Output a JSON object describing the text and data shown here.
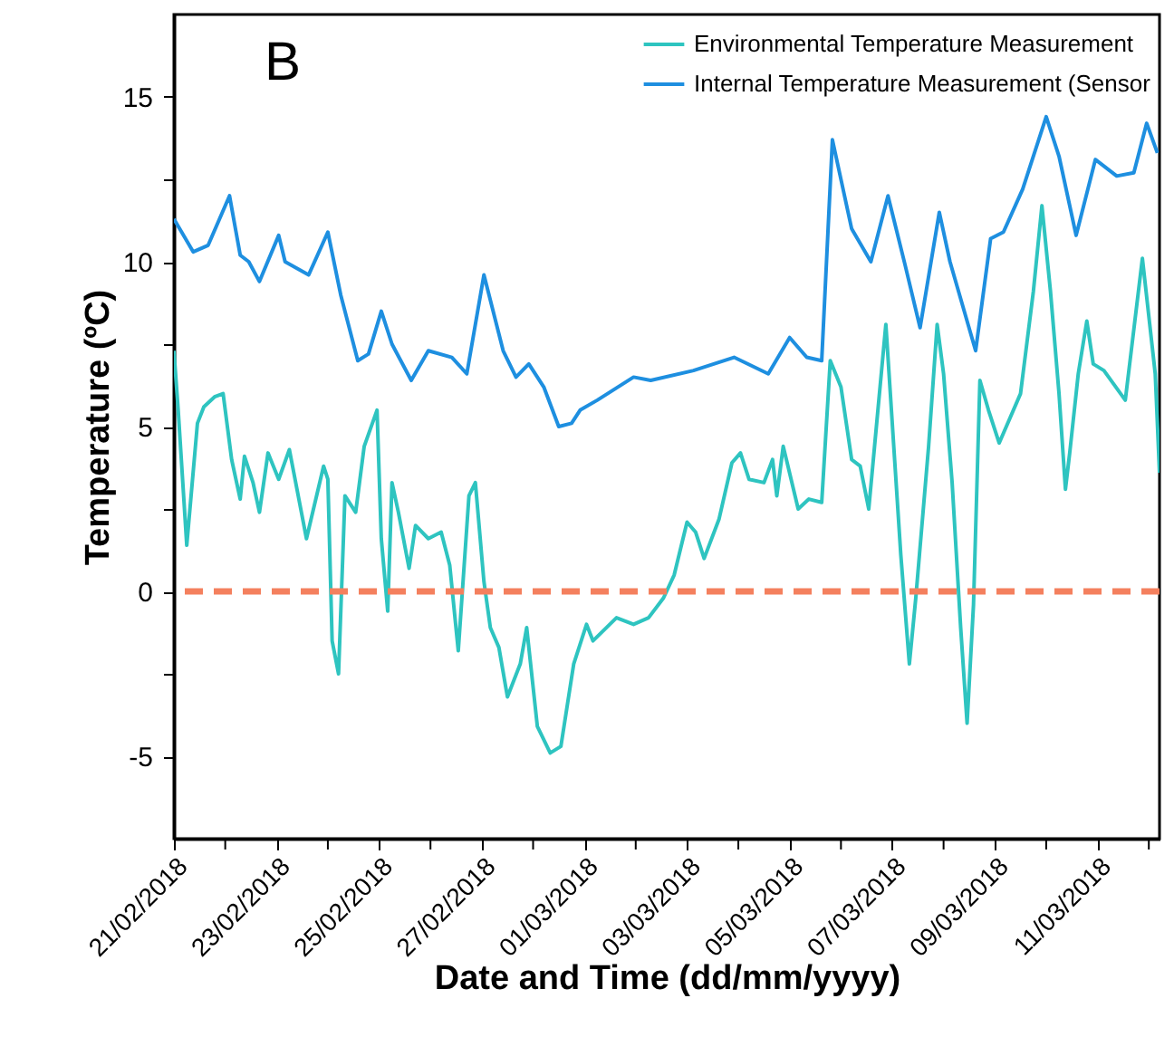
{
  "chart_data": {
    "type": "line",
    "xlabel": "Date and Time (dd/mm/yyyy)",
    "ylabel": "Temperature (ºC)",
    "annotations": [
      "B"
    ],
    "xlim": [
      "2018-02-21T00:00",
      "2018-03-12T05:00"
    ],
    "ylim": [
      -7.5,
      17.5
    ],
    "xticks": [
      {
        "value": "2018-02-21",
        "label": "21/02/2018"
      },
      {
        "value": "2018-02-22",
        "label": null
      },
      {
        "value": "2018-02-23",
        "label": "23/02/2018"
      },
      {
        "value": "2018-02-24",
        "label": null
      },
      {
        "value": "2018-02-25",
        "label": "25/02/2018"
      },
      {
        "value": "2018-02-26",
        "label": null
      },
      {
        "value": "2018-02-27",
        "label": "27/02/2018"
      },
      {
        "value": "2018-02-28",
        "label": null
      },
      {
        "value": "2018-03-01",
        "label": "01/03/2018"
      },
      {
        "value": "2018-03-02",
        "label": null
      },
      {
        "value": "2018-03-03",
        "label": "03/03/2018"
      },
      {
        "value": "2018-03-04",
        "label": null
      },
      {
        "value": "2018-03-05",
        "label": "05/03/2018"
      },
      {
        "value": "2018-03-06",
        "label": null
      },
      {
        "value": "2018-03-07",
        "label": "07/03/2018"
      },
      {
        "value": "2018-03-08",
        "label": null
      },
      {
        "value": "2018-03-09",
        "label": "09/03/2018"
      },
      {
        "value": "2018-03-10",
        "label": null
      },
      {
        "value": "2018-03-11",
        "label": "11/03/2018"
      },
      {
        "value": "2018-03-12",
        "label": null
      }
    ],
    "yticks": [
      -5,
      {
        "value": -2.5,
        "label": null
      },
      0,
      {
        "value": 2.5,
        "label": null
      },
      5,
      {
        "value": 7.5,
        "label": null
      },
      10,
      {
        "value": 12.5,
        "label": null
      },
      15
    ],
    "grid": false,
    "legend": "top right",
    "marker": "none",
    "ref_lines": [
      {
        "axis": "y",
        "value": 0,
        "color": "#f4805e",
        "line_style": "dashed"
      }
    ],
    "series": [
      {
        "name": "Environmental Temperature Measurement",
        "color": "#2ec4c0",
        "x": [
          "2018-02-21T00:00",
          "2018-02-21T02:00",
          "2018-02-21T06:00",
          "2018-02-21T11:00",
          "2018-02-21T14:00",
          "2018-02-21T19:00",
          "2018-02-21T23:00",
          "2018-02-22T03:00",
          "2018-02-22T07:00",
          "2018-02-22T09:00",
          "2018-02-22T13:00",
          "2018-02-22T16:00",
          "2018-02-22T20:00",
          "2018-02-23T01:00",
          "2018-02-23T06:00",
          "2018-02-23T14:00",
          "2018-02-23T22:00",
          "2018-02-24T00:00",
          "2018-02-24T02:00",
          "2018-02-24T05:00",
          "2018-02-24T08:00",
          "2018-02-24T13:00",
          "2018-02-24T17:00",
          "2018-02-24T23:00",
          "2018-02-25T01:00",
          "2018-02-25T04:00",
          "2018-02-25T06:00",
          "2018-02-25T09:00",
          "2018-02-25T14:00",
          "2018-02-25T17:00",
          "2018-02-25T23:00",
          "2018-02-26T05:00",
          "2018-02-26T09:00",
          "2018-02-26T13:00",
          "2018-02-26T18:00",
          "2018-02-26T21:00",
          "2018-02-27T01:00",
          "2018-02-27T04:00",
          "2018-02-27T08:00",
          "2018-02-27T12:00",
          "2018-02-27T18:00",
          "2018-02-27T21:00",
          "2018-02-28T02:00",
          "2018-02-28T08:00",
          "2018-02-28T13:00",
          "2018-02-28T19:00",
          "2018-03-01T01:00",
          "2018-03-01T04:00",
          "2018-03-01T15:00",
          "2018-03-01T23:00",
          "2018-03-02T06:00",
          "2018-03-02T13:00",
          "2018-03-02T18:00",
          "2018-03-03T00:00",
          "2018-03-03T04:00",
          "2018-03-03T08:00",
          "2018-03-03T15:00",
          "2018-03-03T21:00",
          "2018-03-04T01:00",
          "2018-03-04T05:00",
          "2018-03-04T12:00",
          "2018-03-04T16:00",
          "2018-03-04T18:00",
          "2018-03-04T21:00",
          "2018-03-05T04:00",
          "2018-03-05T09:00",
          "2018-03-05T15:00",
          "2018-03-05T19:00",
          "2018-03-06T00:00",
          "2018-03-06T05:00",
          "2018-03-06T09:00",
          "2018-03-06T13:00",
          "2018-03-06T21:00",
          "2018-03-07T02:00",
          "2018-03-07T04:00",
          "2018-03-07T08:00",
          "2018-03-07T11:00",
          "2018-03-07T17:00",
          "2018-03-07T21:00",
          "2018-03-08T00:00",
          "2018-03-08T04:00",
          "2018-03-08T08:00",
          "2018-03-08T11:00",
          "2018-03-08T14:00",
          "2018-03-08T17:00",
          "2018-03-08T21:00",
          "2018-03-09T02:00",
          "2018-03-09T12:00",
          "2018-03-09T18:00",
          "2018-03-09T22:00",
          "2018-03-10T02:00",
          "2018-03-10T06:00",
          "2018-03-10T09:00",
          "2018-03-10T11:00",
          "2018-03-10T15:00",
          "2018-03-10T19:00",
          "2018-03-10T22:00",
          "2018-03-11T03:00",
          "2018-03-11T13:00",
          "2018-03-11T21:00",
          "2018-03-12T03:00",
          "2018-03-12T05:00"
        ],
        "values": [
          7.3,
          5.5,
          1.4,
          5.1,
          5.6,
          5.9,
          6.0,
          4.0,
          2.8,
          4.1,
          3.3,
          2.4,
          4.2,
          3.4,
          4.3,
          1.6,
          3.8,
          3.4,
          -1.5,
          -2.5,
          2.9,
          2.4,
          4.4,
          5.5,
          1.6,
          -0.6,
          3.3,
          2.4,
          0.7,
          2.0,
          1.6,
          1.8,
          0.8,
          -1.8,
          2.9,
          3.3,
          0.3,
          -1.1,
          -1.7,
          -3.2,
          -2.2,
          -1.1,
          -4.1,
          -4.9,
          -4.7,
          -2.2,
          -1.0,
          -1.5,
          -0.8,
          -1.0,
          -0.8,
          -0.2,
          0.5,
          2.1,
          1.8,
          1.0,
          2.2,
          3.9,
          4.2,
          3.4,
          3.3,
          4.0,
          2.9,
          4.4,
          2.5,
          2.8,
          2.7,
          7.0,
          6.2,
          4.0,
          3.8,
          2.5,
          8.1,
          3.1,
          1.1,
          -2.2,
          -0.2,
          4.4,
          8.1,
          6.6,
          3.3,
          -1.1,
          -4.0,
          -0.4,
          6.4,
          5.5,
          4.5,
          6.0,
          9.1,
          11.7,
          9.1,
          6.0,
          3.1,
          4.2,
          6.6,
          8.2,
          6.9,
          6.7,
          5.8,
          10.1,
          6.6,
          3.6
        ]
      },
      {
        "name": "Internal Temperature Measurement (Sensor",
        "color": "#1e8fe0",
        "x": [
          "2018-02-21T00:00",
          "2018-02-21T09:00",
          "2018-02-21T16:00",
          "2018-02-22T02:00",
          "2018-02-22T07:00",
          "2018-02-22T11:00",
          "2018-02-22T16:00",
          "2018-02-23T01:00",
          "2018-02-23T04:00",
          "2018-02-23T15:00",
          "2018-02-24T00:00",
          "2018-02-24T06:00",
          "2018-02-24T14:00",
          "2018-02-24T19:00",
          "2018-02-25T01:00",
          "2018-02-25T06:00",
          "2018-02-25T15:00",
          "2018-02-25T23:00",
          "2018-02-26T10:00",
          "2018-02-26T17:00",
          "2018-02-27T01:00",
          "2018-02-27T10:00",
          "2018-02-27T16:00",
          "2018-02-27T22:00",
          "2018-02-28T05:00",
          "2018-02-28T12:00",
          "2018-02-28T18:00",
          "2018-02-28T22:00",
          "2018-03-01T06:00",
          "2018-03-01T23:00",
          "2018-03-02T07:00",
          "2018-03-03T03:00",
          "2018-03-03T22:00",
          "2018-03-04T14:00",
          "2018-03-05T00:00",
          "2018-03-05T08:00",
          "2018-03-05T15:00",
          "2018-03-05T20:00",
          "2018-03-06T05:00",
          "2018-03-06T14:00",
          "2018-03-06T22:00",
          "2018-03-07T06:00",
          "2018-03-07T13:00",
          "2018-03-07T22:00",
          "2018-03-08T03:00",
          "2018-03-08T15:00",
          "2018-03-08T22:00",
          "2018-03-09T04:00",
          "2018-03-09T13:00",
          "2018-03-10T00:00",
          "2018-03-10T06:00",
          "2018-03-10T14:00",
          "2018-03-10T23:00",
          "2018-03-11T09:00",
          "2018-03-11T17:00",
          "2018-03-11T23:00",
          "2018-03-12T04:00"
        ],
        "values": [
          11.3,
          10.3,
          10.5,
          12.0,
          10.2,
          10.0,
          9.4,
          10.8,
          10.0,
          9.6,
          10.9,
          9.0,
          7.0,
          7.2,
          8.5,
          7.5,
          6.4,
          7.3,
          7.1,
          6.6,
          9.6,
          7.3,
          6.5,
          6.9,
          6.2,
          5.0,
          5.1,
          5.5,
          5.8,
          6.5,
          6.4,
          6.7,
          7.1,
          6.6,
          7.7,
          7.1,
          7.0,
          13.7,
          11.0,
          10.0,
          12.0,
          9.9,
          8.0,
          11.5,
          10.0,
          7.3,
          10.7,
          10.9,
          12.2,
          14.4,
          13.2,
          10.8,
          13.1,
          12.6,
          12.7,
          14.2,
          13.3
        ]
      }
    ]
  }
}
